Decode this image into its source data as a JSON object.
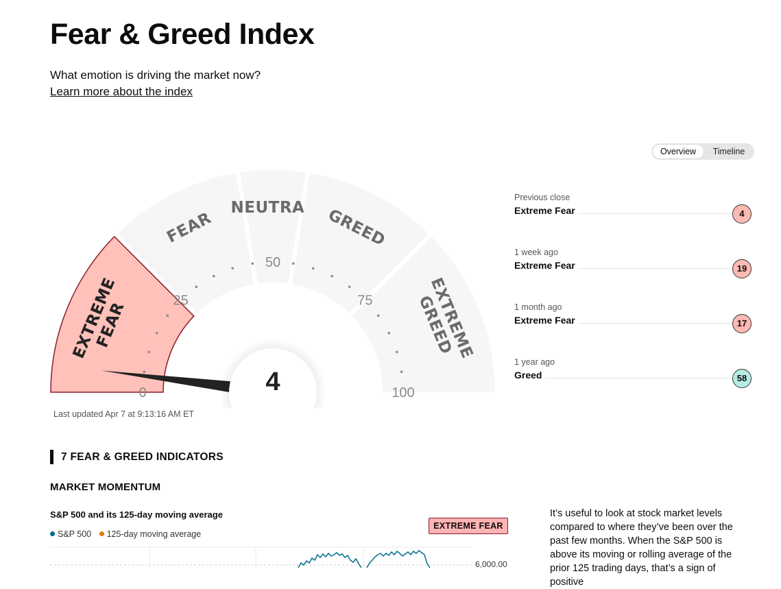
{
  "page": {
    "title": "Fear & Greed Index",
    "subtitle": "What emotion is driving the market now?",
    "learn_more": "Learn more about the index"
  },
  "view_toggle": {
    "overview": "Overview",
    "timeline": "Timeline",
    "active": "Overview"
  },
  "gauge": {
    "value": 4,
    "display_value": "4",
    "segments": [
      {
        "label": "EXTREME FEAR",
        "lines": [
          "EXTREME",
          "FEAR"
        ],
        "range": [
          0,
          25
        ],
        "active": true
      },
      {
        "label": "FEAR",
        "lines": [
          "FEAR"
        ],
        "range": [
          25,
          45
        ],
        "active": false
      },
      {
        "label": "NEUTRAL",
        "lines": [
          "NEUTRAL"
        ],
        "range": [
          45,
          55
        ],
        "active": false
      },
      {
        "label": "GREED",
        "lines": [
          "GREED"
        ],
        "range": [
          55,
          75
        ],
        "active": false
      },
      {
        "label": "EXTREME GREED",
        "lines": [
          "EXTREME",
          "GREED"
        ],
        "range": [
          75,
          100
        ],
        "active": false
      }
    ],
    "tick_labels": [
      "0",
      "25",
      "50",
      "75",
      "100"
    ],
    "colors": {
      "active_fill": "#ffc1b9",
      "active_stroke": "#8b1a2b",
      "inactive_fill": "#f6f6f6",
      "label": "#6b6b6b",
      "active_label": "#222222"
    }
  },
  "last_updated": "Last updated Apr 7 at 9:13:16 AM ET",
  "history": [
    {
      "label": "Previous close",
      "rating": "Extreme Fear",
      "value": "4",
      "color": "#ffb9b3"
    },
    {
      "label": "1 week ago",
      "rating": "Extreme Fear",
      "value": "19",
      "color": "#ffb9b3"
    },
    {
      "label": "1 month ago",
      "rating": "Extreme Fear",
      "value": "17",
      "color": "#ffb9b3"
    },
    {
      "label": "1 year ago",
      "rating": "Greed",
      "value": "58",
      "color": "#b5ede3"
    }
  ],
  "indicators": {
    "section_title": "7 FEAR & GREED INDICATORS",
    "market_momentum": {
      "title": "MARKET MOMENTUM",
      "chart_title": "S&P 500 and its 125-day moving average",
      "legend": [
        {
          "name": "S&P 500",
          "color": "#006d8f"
        },
        {
          "name": "125-day moving average",
          "color": "#e8750e"
        }
      ],
      "badge": "EXTREME FEAR",
      "y_tick": "6,000.00",
      "description": "It’s useful to look at stock market levels compared to where they’ve been over the past few months. When the S&P 500 is above its moving or rolling average of the prior 125 trading days, that’s a sign of positive"
    }
  }
}
